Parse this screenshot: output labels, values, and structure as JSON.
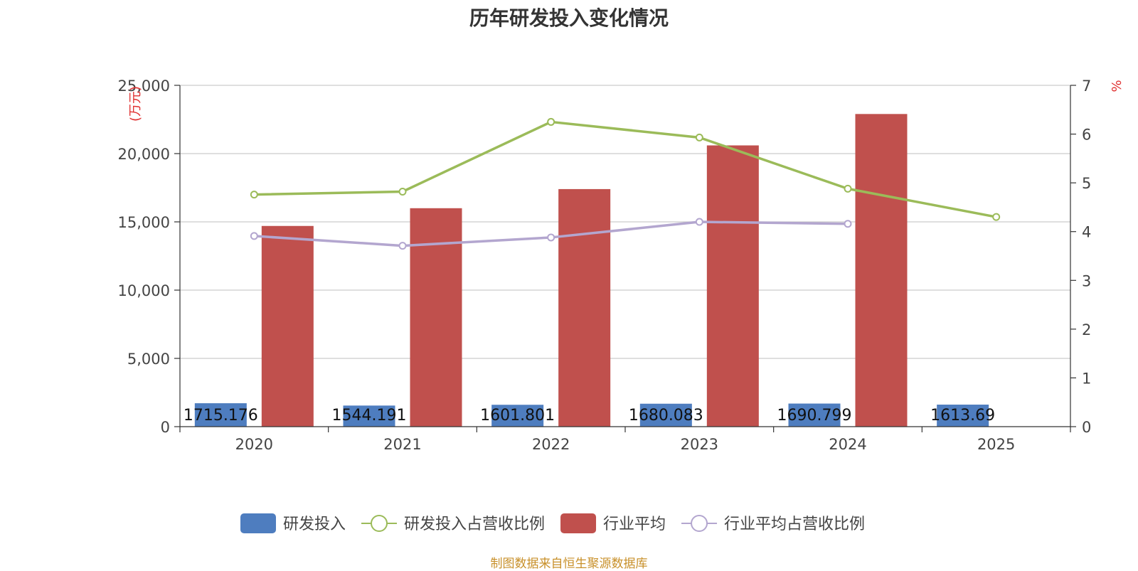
{
  "chart_data": {
    "type": "bar",
    "title": "历年研发投入变化情况",
    "categories": [
      "2020",
      "2021",
      "2022",
      "2023",
      "2024",
      "2025"
    ],
    "y_left": {
      "label": "(万元)",
      "ylim": [
        0,
        25000
      ],
      "ticks": [
        "0",
        "5,000",
        "10,000",
        "15,000",
        "20,000",
        "25,000"
      ]
    },
    "y_right": {
      "label": "%",
      "ylim": [
        0,
        7
      ],
      "ticks": [
        "0",
        "1",
        "2",
        "3",
        "4",
        "5",
        "6",
        "7"
      ]
    },
    "grid": true,
    "legend_position": "bottom",
    "series": [
      {
        "name": "研发投入",
        "type": "bar",
        "axis": "left",
        "color": "#4e7dbf",
        "values": [
          1715.176,
          1544.191,
          1601.801,
          1680.083,
          1690.799,
          1613.69
        ],
        "labels": [
          "1715.176",
          "1544.191",
          "1601.801",
          "1680.083",
          "1690.799",
          "1613.69"
        ]
      },
      {
        "name": "研发投入占营收比例",
        "type": "line",
        "axis": "right",
        "color": "#9bbb59",
        "values": [
          4.76,
          4.82,
          6.25,
          5.93,
          4.88,
          4.3
        ]
      },
      {
        "name": "行业平均",
        "type": "bar",
        "axis": "left",
        "color": "#c0504d",
        "values": [
          14700,
          16000,
          17400,
          20600,
          22900,
          null
        ]
      },
      {
        "name": "行业平均占营收比例",
        "type": "line",
        "axis": "right",
        "color": "#b3a6cf",
        "values": [
          3.91,
          3.71,
          3.88,
          4.2,
          4.16,
          null
        ]
      }
    ]
  },
  "source_note": "制图数据来自恒生聚源数据库"
}
